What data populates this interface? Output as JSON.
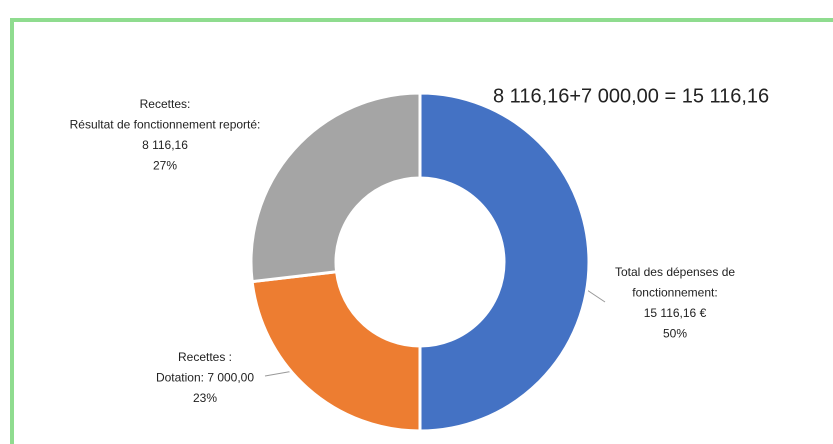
{
  "chart_data": {
    "type": "donut",
    "annotation": "8 116,16+7 000,00 =  15 116,16",
    "categories": [
      "Total des dépenses de fonctionnement",
      "Recettes : Dotation",
      "Recettes: Résultat de fonctionnement reporté"
    ],
    "values": [
      15116.16,
      7000,
      8116.16
    ],
    "value_labels": [
      "15 116,16 €",
      "Dotation: 7 000,00",
      "8 116,16"
    ],
    "labels": [
      [
        "Total des dépenses de",
        "fonctionnement:"
      ],
      [
        "Recettes :"
      ],
      [
        "Recettes:",
        "Résultat de fonctionnement reporté:"
      ]
    ],
    "percent_labels": [
      "50%",
      "23%",
      "27%"
    ],
    "colors": [
      "#4472c4",
      "#ed7d31",
      "#a5a5a5"
    ]
  }
}
